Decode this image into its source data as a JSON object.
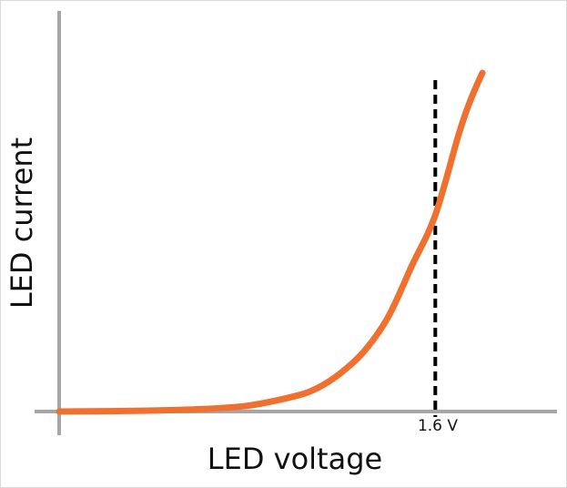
{
  "chart_data": {
    "type": "line",
    "title": "",
    "xlabel": "LED voltage",
    "ylabel": "LED current",
    "grid": false,
    "legend": "none",
    "marker": {
      "x": 1.6,
      "label": "1.6 V",
      "style": "dashed"
    },
    "series": [
      {
        "x": [
          0.0,
          0.2,
          0.4,
          0.6,
          0.8,
          1.0,
          1.1,
          1.2,
          1.3,
          1.4,
          1.5,
          1.6,
          1.7,
          1.75,
          1.8
        ],
        "y": [
          0.0,
          0.001,
          0.003,
          0.007,
          0.017,
          0.045,
          0.07,
          0.115,
          0.18,
          0.28,
          0.43,
          0.58,
          0.82,
          0.92,
          1.0
        ]
      }
    ],
    "colors": {
      "curve": "#f07030",
      "axis": "#a6a6a6",
      "marker": "#000000"
    }
  }
}
